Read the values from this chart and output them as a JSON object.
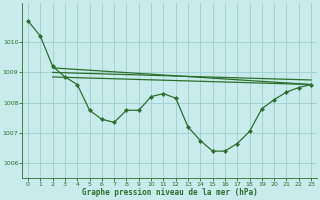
{
  "bg_color": "#c8ecec",
  "grid_color": "#a0d0d0",
  "line_color": "#2d6e2d",
  "xlabel": "Graphe pression niveau de la mer (hPa)",
  "xlim": [
    -0.5,
    23.5
  ],
  "ylim": [
    1005.5,
    1011.3
  ],
  "yticks": [
    1006,
    1007,
    1008,
    1009,
    1010
  ],
  "xticks": [
    0,
    1,
    2,
    3,
    4,
    5,
    6,
    7,
    8,
    9,
    10,
    11,
    12,
    13,
    14,
    15,
    16,
    17,
    18,
    19,
    20,
    21,
    22,
    23
  ],
  "main_x": [
    0,
    1,
    2,
    3,
    4,
    5,
    6,
    7,
    8,
    9,
    10,
    11,
    12,
    13,
    14,
    15,
    16,
    17,
    18,
    19,
    20,
    21,
    22,
    23
  ],
  "main_y": [
    1010.7,
    1010.2,
    1009.2,
    1008.85,
    1008.6,
    1007.75,
    1007.45,
    1007.35,
    1007.75,
    1007.75,
    1008.2,
    1008.3,
    1008.15,
    1007.2,
    1006.75,
    1006.4,
    1006.4,
    1006.65,
    1007.05,
    1007.8,
    1008.1,
    1008.35,
    1008.5,
    1008.6
  ],
  "trend_lines": [
    {
      "x": [
        2,
        23
      ],
      "y": [
        1009.15,
        1008.6
      ]
    },
    {
      "x": [
        2,
        23
      ],
      "y": [
        1009.0,
        1008.75
      ]
    },
    {
      "x": [
        2,
        23
      ],
      "y": [
        1008.85,
        1008.6
      ]
    }
  ],
  "figsize": [
    3.2,
    2.0
  ],
  "dpi": 100
}
